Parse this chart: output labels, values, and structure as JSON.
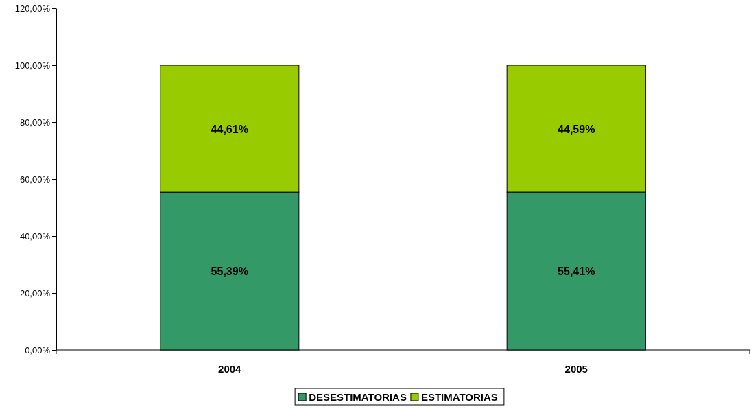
{
  "chart_data": {
    "type": "bar",
    "stacked": true,
    "categories": [
      "2004",
      "2005"
    ],
    "series": [
      {
        "name": "DESESTIMATORIAS",
        "color": "#339966",
        "values": [
          55.39,
          55.41
        ],
        "value_labels": [
          "55,39%",
          "55,41%"
        ]
      },
      {
        "name": "ESTIMATORIAS",
        "color": "#99cc00",
        "values": [
          44.61,
          44.59
        ],
        "value_labels": [
          "44,61%",
          "44,59%"
        ]
      }
    ],
    "ylim": [
      0,
      120
    ],
    "yticks": [
      {
        "value": 0,
        "label": "0,00%"
      },
      {
        "value": 20,
        "label": "20,00%"
      },
      {
        "value": 40,
        "label": "40,00%"
      },
      {
        "value": 60,
        "label": "60,00%"
      },
      {
        "value": 80,
        "label": "80,00%"
      },
      {
        "value": 100,
        "label": "100,00%"
      },
      {
        "value": 120,
        "label": "120,00%"
      }
    ],
    "grid": false,
    "legend": "bottom"
  }
}
